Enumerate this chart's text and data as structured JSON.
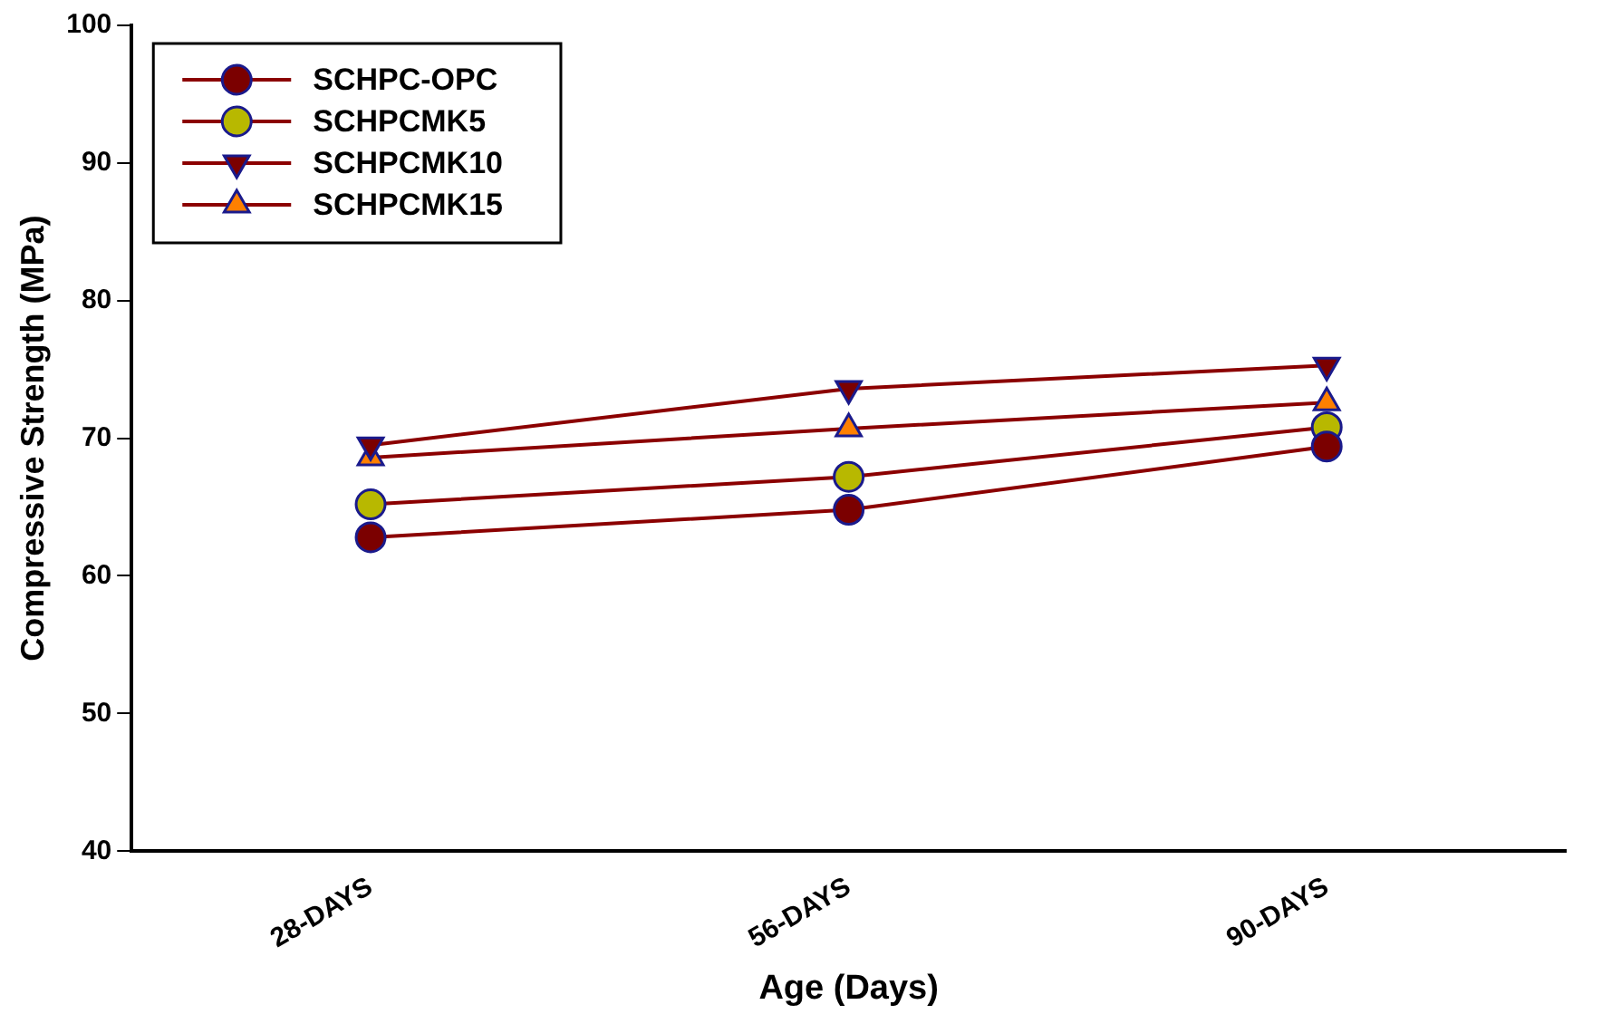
{
  "chart_data": {
    "type": "line",
    "xlabel": "Age (Days)",
    "ylabel": "Compressive Strength (MPa)",
    "categories": [
      "28-DAYS",
      "56-DAYS",
      "90-DAYS"
    ],
    "series": [
      {
        "name": "SCHPC-OPC",
        "color": "#7b0000",
        "marker": "circle",
        "values": [
          62.8,
          64.8,
          69.4
        ]
      },
      {
        "name": "SCHPCMK5",
        "color": "#b8b800",
        "marker": "circle",
        "values": [
          65.2,
          67.2,
          70.8
        ]
      },
      {
        "name": "SCHPCMK10",
        "color": "#7b0000",
        "marker": "triangle-down",
        "values": [
          69.5,
          73.6,
          75.3
        ]
      },
      {
        "name": "SCHPCMK15",
        "color": "#ff8000",
        "marker": "triangle",
        "values": [
          68.6,
          70.7,
          72.6
        ]
      }
    ],
    "ylim": [
      40,
      100
    ],
    "yticks": [
      40,
      50,
      60,
      70,
      80,
      90,
      100
    ],
    "grid": false,
    "legend": "top left",
    "line_style": "solid"
  }
}
